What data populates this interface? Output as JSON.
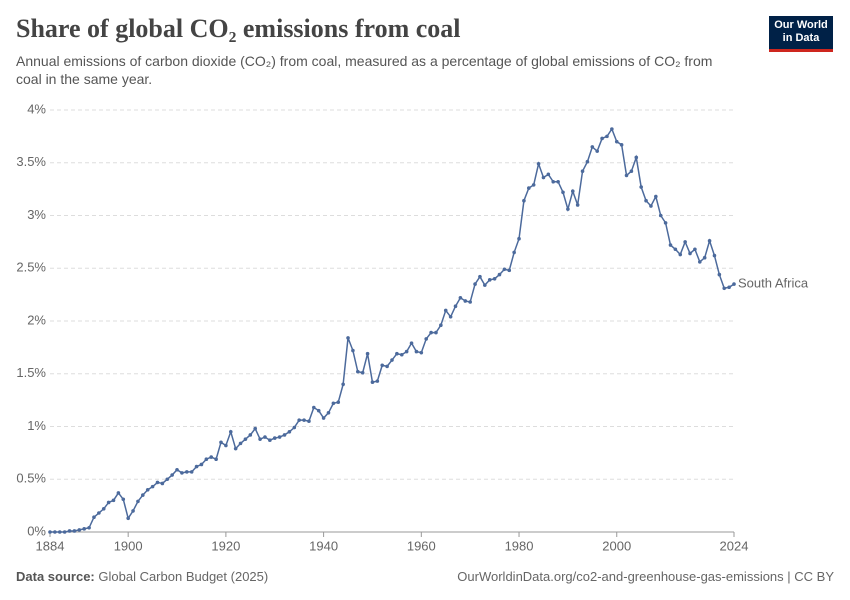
{
  "logo": [
    "Our World",
    "in Data"
  ],
  "chart_data": {
    "type": "line",
    "title": "Share of global CO₂ emissions from coal",
    "subtitle": "Annual emissions of carbon dioxide (CO₂) from coal, measured as a percentage of global emissions of CO₂ from coal in the same year.",
    "source_label": "Data source:",
    "source": "Global Carbon Budget (2025)",
    "url": "OurWorldinData.org/co2-and-greenhouse-gas-emissions | CC BY",
    "x": [
      1884,
      1885,
      1886,
      1887,
      1888,
      1889,
      1890,
      1891,
      1892,
      1893,
      1894,
      1895,
      1896,
      1897,
      1898,
      1899,
      1900,
      1901,
      1902,
      1903,
      1904,
      1905,
      1906,
      1907,
      1908,
      1909,
      1910,
      1911,
      1912,
      1913,
      1914,
      1915,
      1916,
      1917,
      1918,
      1919,
      1920,
      1921,
      1922,
      1923,
      1924,
      1925,
      1926,
      1927,
      1928,
      1929,
      1930,
      1931,
      1932,
      1933,
      1934,
      1935,
      1936,
      1937,
      1938,
      1939,
      1940,
      1941,
      1942,
      1943,
      1944,
      1945,
      1946,
      1947,
      1948,
      1949,
      1950,
      1951,
      1952,
      1953,
      1954,
      1955,
      1956,
      1957,
      1958,
      1959,
      1960,
      1961,
      1962,
      1963,
      1964,
      1965,
      1966,
      1967,
      1968,
      1969,
      1970,
      1971,
      1972,
      1973,
      1974,
      1975,
      1976,
      1977,
      1978,
      1979,
      1980,
      1981,
      1982,
      1983,
      1984,
      1985,
      1986,
      1987,
      1988,
      1989,
      1990,
      1991,
      1992,
      1993,
      1994,
      1995,
      1996,
      1997,
      1998,
      1999,
      2000,
      2001,
      2002,
      2003,
      2004,
      2005,
      2006,
      2007,
      2008,
      2009,
      2010,
      2011,
      2012,
      2013,
      2014,
      2015,
      2016,
      2017,
      2018,
      2019,
      2020,
      2021,
      2022,
      2023,
      2024
    ],
    "series": [
      {
        "name": "South Africa",
        "color": "#4c6a9c",
        "values": [
          0,
          0,
          0,
          0,
          0.01,
          0.01,
          0.02,
          0.03,
          0.04,
          0.14,
          0.18,
          0.22,
          0.28,
          0.3,
          0.37,
          0.31,
          0.13,
          0.2,
          0.29,
          0.35,
          0.4,
          0.43,
          0.47,
          0.46,
          0.5,
          0.54,
          0.59,
          0.56,
          0.57,
          0.57,
          0.62,
          0.64,
          0.69,
          0.71,
          0.69,
          0.85,
          0.82,
          0.95,
          0.79,
          0.84,
          0.88,
          0.92,
          0.98,
          0.88,
          0.9,
          0.87,
          0.89,
          0.9,
          0.92,
          0.95,
          0.99,
          1.06,
          1.06,
          1.05,
          1.18,
          1.15,
          1.08,
          1.13,
          1.22,
          1.23,
          1.4,
          1.84,
          1.72,
          1.52,
          1.51,
          1.69,
          1.42,
          1.43,
          1.58,
          1.57,
          1.63,
          1.69,
          1.68,
          1.71,
          1.79,
          1.71,
          1.7,
          1.83,
          1.89,
          1.89,
          1.96,
          2.1,
          2.04,
          2.14,
          2.22,
          2.19,
          2.18,
          2.35,
          2.42,
          2.34,
          2.39,
          2.4,
          2.44,
          2.49,
          2.48,
          2.65,
          2.78,
          3.14,
          3.26,
          3.29,
          3.49,
          3.36,
          3.39,
          3.32,
          3.32,
          3.22,
          3.06,
          3.23,
          3.1,
          3.42,
          3.51,
          3.65,
          3.61,
          3.73,
          3.75,
          3.82,
          3.7,
          3.67,
          3.38,
          3.42,
          3.55,
          3.27,
          3.14,
          3.09,
          3.18,
          3.0,
          2.93,
          2.72,
          2.68,
          2.63,
          2.75,
          2.64,
          2.68,
          2.56,
          2.6,
          2.76,
          2.62,
          2.44,
          2.31,
          2.32,
          2.35
        ]
      }
    ],
    "xlim": [
      1884,
      2024
    ],
    "xticks": [
      1884,
      1900,
      1920,
      1940,
      1960,
      1980,
      2000,
      2024
    ],
    "ylim": [
      0,
      4
    ],
    "yticks": [
      {
        "value": 0,
        "label": "0%"
      },
      {
        "value": 0.5,
        "label": "0.5%"
      },
      {
        "value": 1,
        "label": "1%"
      },
      {
        "value": 1.5,
        "label": "1.5%"
      },
      {
        "value": 2,
        "label": "2%"
      },
      {
        "value": 2.5,
        "label": "2.5%"
      },
      {
        "value": 3,
        "label": "3%"
      },
      {
        "value": 3.5,
        "label": "3.5%"
      },
      {
        "value": 4,
        "label": "4%"
      }
    ],
    "grid": true
  }
}
